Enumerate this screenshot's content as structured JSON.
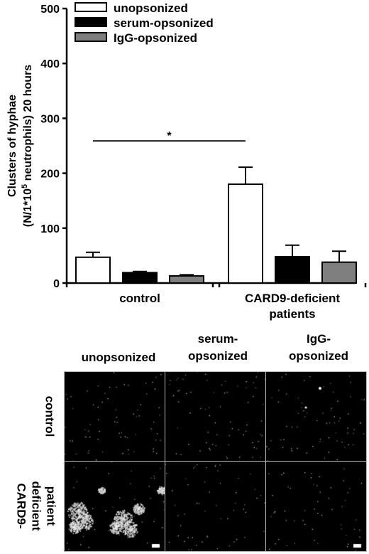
{
  "chart_data": {
    "type": "bar",
    "categories": [
      "control",
      "CARD9-deficient patients"
    ],
    "category_lines": [
      [
        "control"
      ],
      [
        "CARD9-deficient",
        "patients"
      ]
    ],
    "series": [
      {
        "name": "unopsonized",
        "values": [
          47,
          180
        ],
        "errors": [
          9,
          31
        ],
        "color": "#ffffff"
      },
      {
        "name": "serum-opsonized",
        "values": [
          19,
          48
        ],
        "errors": [
          2,
          21
        ],
        "color": "#000000"
      },
      {
        "name": "IgG-opsonized",
        "values": [
          13,
          38
        ],
        "errors": [
          2,
          20
        ],
        "color": "#7f7f7f"
      }
    ],
    "ylabel_lines": [
      "Clusters of hyphae",
      "(N/1*10^5 neutrophils) 20 hours"
    ],
    "ylim": [
      0,
      500
    ],
    "yticks": [
      0,
      100,
      200,
      300,
      400,
      500
    ],
    "legend_position": "top-left",
    "grid": false,
    "annotation": {
      "text": "*",
      "from_category": 0,
      "to_category": 1,
      "y": 290
    }
  },
  "micrographs": {
    "columns": [
      {
        "lines": [
          "unopsonized"
        ]
      },
      {
        "lines": [
          "serum-",
          "opsonized"
        ]
      },
      {
        "lines": [
          "IgG-",
          "opsonized"
        ]
      }
    ],
    "rows": [
      {
        "lines": [
          "control"
        ]
      },
      {
        "lines": [
          "CARD9-",
          "deficient",
          "patient"
        ]
      }
    ]
  }
}
